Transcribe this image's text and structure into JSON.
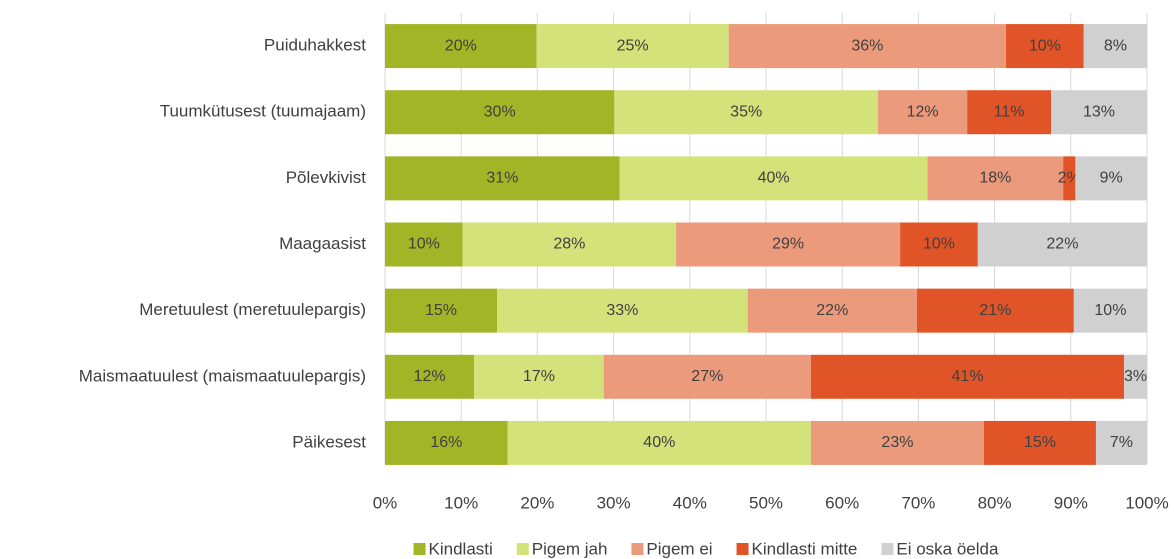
{
  "chart_data": {
    "type": "bar",
    "orientation": "horizontal",
    "stacked": true,
    "categories": [
      "Puiduhakkest",
      "Tuumkütusest (tuumajaam)",
      "Põlevkivist",
      "Maagaasist",
      "Meretuulest (meretuulepargis)",
      "Maismaatuulest (maismaatuulepargis)",
      "Päikesest"
    ],
    "series": [
      {
        "name": "Kindlasti",
        "color": "#a2b527",
        "values": [
          19.9,
          30.1,
          30.8,
          10.2,
          14.7,
          11.7,
          16.1
        ],
        "value_labels": [
          "20%",
          "30%",
          "31%",
          "10%",
          "15%",
          "12%",
          "16%"
        ]
      },
      {
        "name": "Pigem jah",
        "color": "#d4e27a",
        "values": [
          25.2,
          34.6,
          40.4,
          28.0,
          32.9,
          17.0,
          39.8
        ],
        "value_labels": [
          "25%",
          "35%",
          "40%",
          "28%",
          "33%",
          "17%",
          "40%"
        ]
      },
      {
        "name": "Pigem ei",
        "color": "#ec9a7c",
        "values": [
          36.4,
          11.7,
          17.8,
          29.4,
          22.2,
          27.2,
          22.7
        ],
        "value_labels": [
          "36%",
          "12%",
          "18%",
          "29%",
          "22%",
          "27%",
          "23%"
        ]
      },
      {
        "name": "Kindlasti mitte",
        "color": "#e05427",
        "values": [
          10.2,
          11.0,
          1.6,
          10.2,
          20.6,
          41.1,
          14.7
        ],
        "value_labels": [
          "10%",
          "11%",
          "2%",
          "10%",
          "21%",
          "41%",
          "15%"
        ]
      },
      {
        "name": "Ei oska öelda",
        "color": "#d0d0d0",
        "values": [
          8.3,
          12.6,
          9.4,
          22.2,
          9.6,
          3.0,
          6.7
        ],
        "value_labels": [
          "8%",
          "13%",
          "9%",
          "22%",
          "10%",
          "3%",
          "7%"
        ]
      }
    ],
    "xlim": [
      0,
      100
    ],
    "xticks": [
      {
        "value": 0,
        "label": "0%"
      },
      {
        "value": 10,
        "label": "10%"
      },
      {
        "value": 20,
        "label": "20%"
      },
      {
        "value": 30,
        "label": "30%"
      },
      {
        "value": 40,
        "label": "40%"
      },
      {
        "value": 50,
        "label": "50%"
      },
      {
        "value": 60,
        "label": "60%"
      },
      {
        "value": 70,
        "label": "70%"
      },
      {
        "value": 80,
        "label": "80%"
      },
      {
        "value": 90,
        "label": "90%"
      },
      {
        "value": 100,
        "label": "100%"
      }
    ],
    "grid": true,
    "legend": "bottom"
  }
}
